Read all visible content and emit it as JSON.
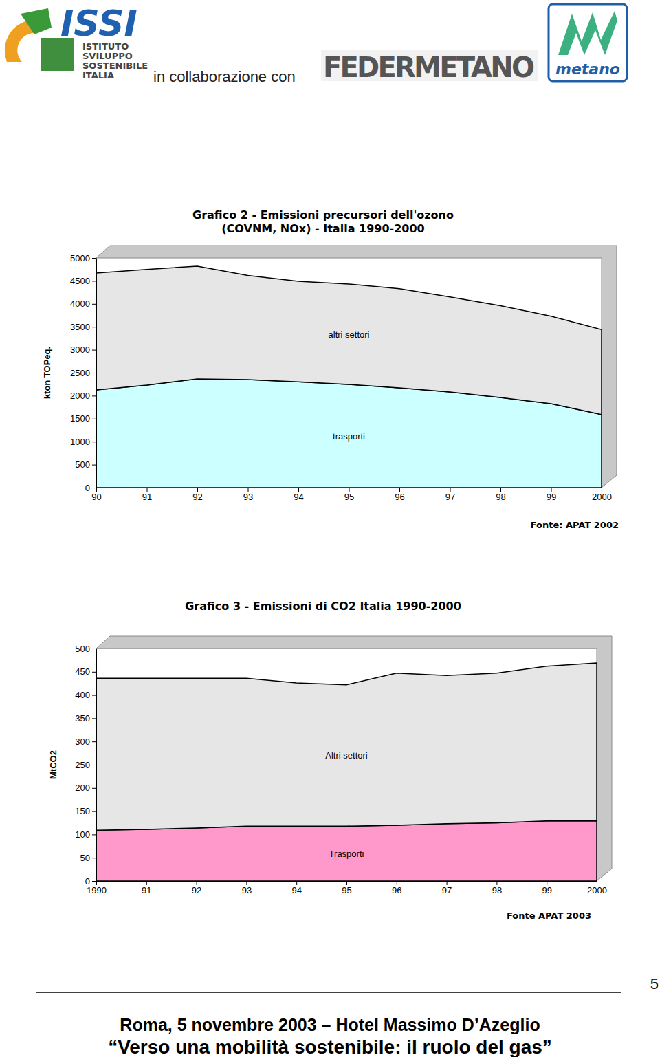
{
  "header": {
    "issi": "ISSI",
    "issi_name": [
      "ISTITUTO",
      "SVILUPPO",
      "SOSTENIBILE",
      "ITALIA"
    ],
    "collab": "in collaborazione con",
    "federmetano": "FEDERMETANO",
    "metano": "metano"
  },
  "chart_data": [
    {
      "type": "area",
      "stacked": true,
      "title": [
        "Grafico 2 - Emissioni precursori dell'ozono",
        "(COVNM, NOx) - Italia 1990-2000"
      ],
      "y_label": "kton TOPeq.",
      "annotations": [
        "Fonte: APAT 2002"
      ],
      "categories": [
        "90",
        "91",
        "92",
        "93",
        "94",
        "95",
        "96",
        "97",
        "98",
        "99",
        "2000"
      ],
      "series": [
        {
          "name": "trasporti",
          "color": "#ccffff",
          "values": [
            2125,
            2230,
            2365,
            2350,
            2300,
            2245,
            2170,
            2080,
            1960,
            1825,
            1590
          ]
        },
        {
          "name": "altri settori",
          "color": "#e6e6e6",
          "values": [
            2545,
            2520,
            2455,
            2270,
            2190,
            2185,
            2160,
            2070,
            2000,
            1905,
            1850
          ]
        }
      ],
      "ylim": [
        0,
        5000
      ],
      "yticks": [
        0,
        500,
        1000,
        1500,
        2000,
        2500,
        3000,
        3500,
        4000,
        4500,
        5000
      ]
    },
    {
      "type": "area",
      "stacked": true,
      "title": [
        "Grafico 3 - Emissioni di CO2 Italia 1990-2000"
      ],
      "y_label": "MtCO2",
      "annotations": [
        "Fonte APAT 2003"
      ],
      "categories": [
        "1990",
        "91",
        "92",
        "93",
        "94",
        "95",
        "96",
        "97",
        "98",
        "99",
        "2000"
      ],
      "series": [
        {
          "name": "Trasporti",
          "color": "#ff99cc",
          "values": [
            109,
            111,
            114,
            118,
            118,
            118,
            120,
            123,
            125,
            129,
            129
          ]
        },
        {
          "name": "Altri settori",
          "color": "#e6e6e6",
          "values": [
            327,
            325,
            322,
            318,
            308,
            304,
            327,
            319,
            322,
            333,
            340
          ]
        }
      ],
      "ylim": [
        0,
        500
      ],
      "yticks": [
        0,
        50,
        100,
        150,
        200,
        250,
        300,
        350,
        400,
        450,
        500
      ]
    }
  ],
  "footer": {
    "page": 5,
    "lines": [
      "Roma, 5 novembre 2003 – Hotel Massimo D’Azeglio",
      "“Verso una mobilità sostenibile: il ruolo del gas”"
    ]
  }
}
